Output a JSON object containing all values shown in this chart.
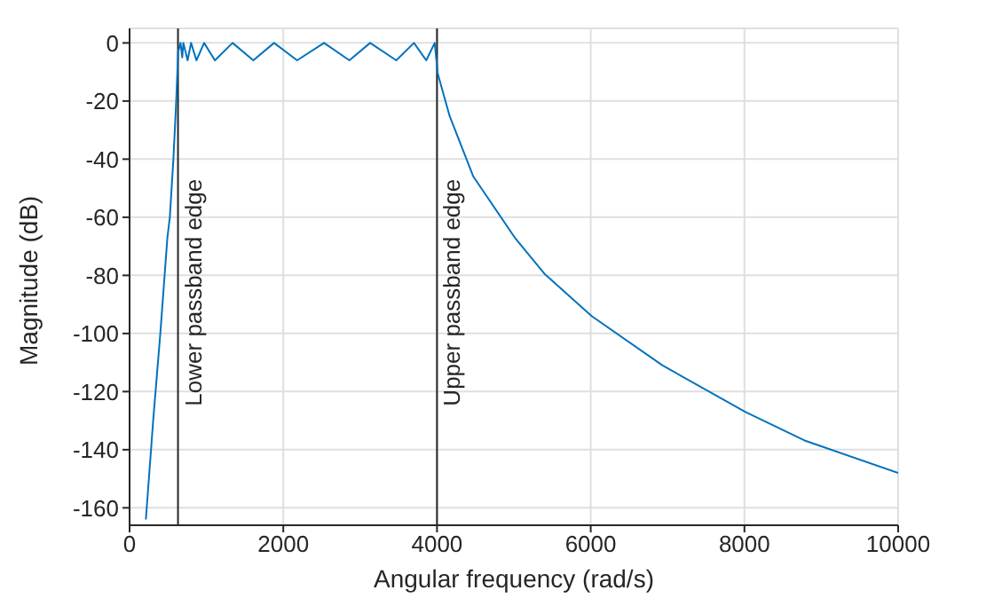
{
  "chart_data": {
    "type": "line",
    "xlabel": "Angular frequency (rad/s)",
    "ylabel": "Magnitude (dB)",
    "x": [
      212,
      307,
      400,
      492,
      524,
      570,
      607,
      622,
      632,
      663,
      685,
      700,
      755,
      800,
      870,
      970,
      1110,
      1340,
      1610,
      1880,
      2180,
      2530,
      2860,
      3130,
      3470,
      3700,
      3860,
      3970,
      4010,
      4088,
      4165,
      4473,
      5012,
      5397,
      6012,
      6935,
      8014,
      8800,
      10000
    ],
    "series": [
      {
        "color": "#0072bd",
        "values": [
          -164,
          -130,
          -100,
          -67,
          -60,
          -40,
          -20,
          -10,
          -3,
          0,
          -5,
          0,
          -6,
          0,
          -6,
          0,
          -6,
          0,
          -6,
          0,
          -6,
          0,
          -6,
          0,
          -6,
          0,
          -6,
          0,
          -10.6,
          -18,
          -25.2,
          -46,
          -67,
          -79.4,
          -94,
          -111,
          -127,
          -137,
          -148
        ]
      }
    ],
    "xlim": [
      0,
      10000
    ],
    "xticks": [
      0,
      2000,
      4000,
      6000,
      8000,
      10000
    ],
    "ylim": [
      -166,
      5
    ],
    "yticks": [
      0,
      -20,
      -40,
      -60,
      -80,
      -100,
      -120,
      -140,
      -160
    ],
    "grid": true,
    "marker": "none",
    "line_style": "solid",
    "ref_lines": [
      {
        "axis": "x",
        "value": 630,
        "label": "Lower passband edge",
        "color": "#262626"
      },
      {
        "axis": "x",
        "value": 4000,
        "label": "Upper passband edge",
        "color": "#262626"
      }
    ]
  }
}
